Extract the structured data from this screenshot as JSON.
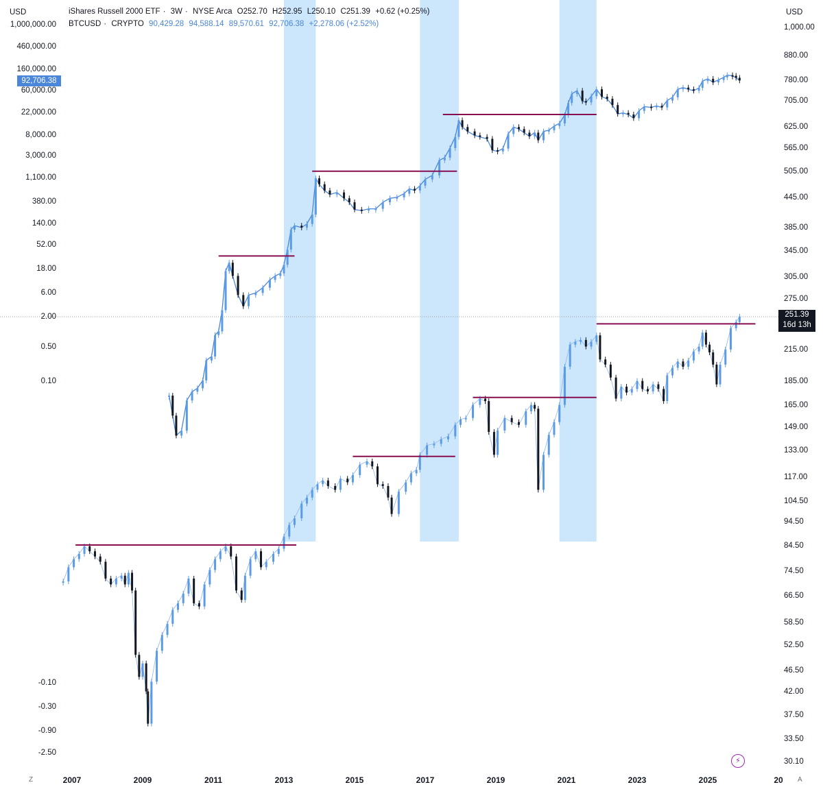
{
  "header": {
    "iwm": {
      "name": "iShares Russell 2000 ETF",
      "interval": "3W",
      "exchange": "NYSE Arca",
      "open": "O252.70",
      "high": "H252.95",
      "low": "L250.10",
      "close": "C251.39",
      "change": "+0.62 (+0.25%)"
    },
    "btc": {
      "name": "BTCUSD",
      "exchange": "CRYPTO",
      "open": "90,429.28",
      "high": "94,588.14",
      "low": "89,570.61",
      "close": "92,706.38",
      "change": "+2,278.06 (+2.52%)"
    }
  },
  "axes": {
    "left_unit": "USD",
    "right_unit": "USD"
  },
  "badges": {
    "btc_price": "92,706.38",
    "iwm_price": "251.39",
    "iwm_countdown": "16d 13h"
  },
  "footer": {
    "z": "Z",
    "a": "A"
  },
  "colors": {
    "btc_line": "#4a86d9",
    "candle_up": "#5b9be6",
    "candle_down": "#131722",
    "resistance": "#880e4f",
    "highlight": "#bbdefb"
  },
  "chart_data": {
    "type": "line",
    "x_ticks": [
      "2007",
      "2009",
      "2011",
      "2013",
      "2015",
      "2017",
      "2019",
      "2021",
      "2023",
      "2025",
      "20"
    ],
    "left_axis_labels": [
      "1,000,000.00",
      "460,000.00",
      "160,000.00",
      "60,000.00",
      "22,000.00",
      "8,000.00",
      "3,000.00",
      "1,100.00",
      "380.00",
      "140.00",
      "52.00",
      "18.00",
      "6.00",
      "2.00",
      "0.50",
      "0.10",
      "-0.10",
      "-0.30",
      "-0.90",
      "-2.50"
    ],
    "right_axis_labels": [
      "1,000.00",
      "880.00",
      "780.00",
      "705.00",
      "625.00",
      "565.00",
      "505.00",
      "445.00",
      "385.00",
      "345.00",
      "305.00",
      "275.00",
      "215.00",
      "185.00",
      "165.00",
      "149.00",
      "133.00",
      "117.00",
      "104.50",
      "94.50",
      "84.50",
      "74.50",
      "66.50",
      "58.50",
      "52.50",
      "46.50",
      "42.00",
      "37.50",
      "33.50",
      "30.10"
    ],
    "highlight_periods": [
      [
        2013.0,
        2013.9
      ],
      [
        2016.85,
        2017.95
      ],
      [
        2020.8,
        2021.85
      ]
    ],
    "series": [
      {
        "name": "BTCUSD",
        "axis": "left",
        "points": [
          [
            2009.75,
            0.05
          ],
          [
            2009.85,
            0.02
          ],
          [
            2009.95,
            0.008
          ],
          [
            2010.1,
            0.01
          ],
          [
            2010.25,
            0.04
          ],
          [
            2010.4,
            0.06
          ],
          [
            2010.55,
            0.07
          ],
          [
            2010.7,
            0.1
          ],
          [
            2010.8,
            0.25
          ],
          [
            2010.95,
            0.3
          ],
          [
            2011.05,
            0.8
          ],
          [
            2011.15,
            0.95
          ],
          [
            2011.25,
            2.5
          ],
          [
            2011.35,
            15
          ],
          [
            2011.45,
            22
          ],
          [
            2011.55,
            12
          ],
          [
            2011.7,
            5
          ],
          [
            2011.85,
            3
          ],
          [
            2012.0,
            5
          ],
          [
            2012.2,
            5.5
          ],
          [
            2012.4,
            7
          ],
          [
            2012.6,
            10
          ],
          [
            2012.75,
            12
          ],
          [
            2012.9,
            13.5
          ],
          [
            2013.0,
            20
          ],
          [
            2013.1,
            40
          ],
          [
            2013.2,
            100
          ],
          [
            2013.3,
            120
          ],
          [
            2013.5,
            110
          ],
          [
            2013.65,
            130
          ],
          [
            2013.8,
            200
          ],
          [
            2013.9,
            1050
          ],
          [
            2014.0,
            800
          ],
          [
            2014.15,
            600
          ],
          [
            2014.3,
            500
          ],
          [
            2014.5,
            550
          ],
          [
            2014.7,
            420
          ],
          [
            2014.85,
            350
          ],
          [
            2015.0,
            250
          ],
          [
            2015.2,
            240
          ],
          [
            2015.4,
            260
          ],
          [
            2015.6,
            260
          ],
          [
            2015.8,
            350
          ],
          [
            2016.0,
            420
          ],
          [
            2016.2,
            440
          ],
          [
            2016.4,
            520
          ],
          [
            2016.55,
            650
          ],
          [
            2016.7,
            600
          ],
          [
            2016.85,
            750
          ],
          [
            2017.0,
            1000
          ],
          [
            2017.2,
            1200
          ],
          [
            2017.4,
            2400
          ],
          [
            2017.55,
            2700
          ],
          [
            2017.7,
            4200
          ],
          [
            2017.85,
            7000
          ],
          [
            2017.95,
            15000
          ],
          [
            2018.05,
            11000
          ],
          [
            2018.2,
            9000
          ],
          [
            2018.4,
            7500
          ],
          [
            2018.55,
            7000
          ],
          [
            2018.75,
            6400
          ],
          [
            2018.9,
            3800
          ],
          [
            2019.05,
            3600
          ],
          [
            2019.2,
            4100
          ],
          [
            2019.35,
            8000
          ],
          [
            2019.5,
            11000
          ],
          [
            2019.65,
            10000
          ],
          [
            2019.8,
            8500
          ],
          [
            2019.95,
            7200
          ],
          [
            2020.1,
            8500
          ],
          [
            2020.2,
            6000
          ],
          [
            2020.35,
            9000
          ],
          [
            2020.5,
            9500
          ],
          [
            2020.65,
            11500
          ],
          [
            2020.8,
            13000
          ],
          [
            2020.95,
            19000
          ],
          [
            2021.05,
            33000
          ],
          [
            2021.15,
            50000
          ],
          [
            2021.3,
            58000
          ],
          [
            2021.45,
            36000
          ],
          [
            2021.55,
            34000
          ],
          [
            2021.7,
            45000
          ],
          [
            2021.85,
            62000
          ],
          [
            2022.0,
            44000
          ],
          [
            2022.15,
            40000
          ],
          [
            2022.3,
            30000
          ],
          [
            2022.45,
            20000
          ],
          [
            2022.6,
            21000
          ],
          [
            2022.75,
            19500
          ],
          [
            2022.9,
            16500
          ],
          [
            2023.05,
            23000
          ],
          [
            2023.2,
            28000
          ],
          [
            2023.4,
            27000
          ],
          [
            2023.55,
            29000
          ],
          [
            2023.7,
            27000
          ],
          [
            2023.85,
            37000
          ],
          [
            2024.0,
            43000
          ],
          [
            2024.15,
            62000
          ],
          [
            2024.3,
            67000
          ],
          [
            2024.45,
            62000
          ],
          [
            2024.6,
            58000
          ],
          [
            2024.75,
            66000
          ],
          [
            2024.85,
            90000
          ],
          [
            2025.0,
            100000
          ],
          [
            2025.15,
            85000
          ],
          [
            2025.3,
            95000
          ],
          [
            2025.45,
            107000
          ],
          [
            2025.55,
            118000
          ],
          [
            2025.7,
            115000
          ],
          [
            2025.8,
            105000
          ],
          [
            2025.9,
            92706
          ]
        ]
      },
      {
        "name": "iShares Russell 2000 ETF",
        "axis": "right",
        "points": [
          [
            2006.75,
            71
          ],
          [
            2006.9,
            76
          ],
          [
            2007.05,
            79
          ],
          [
            2007.2,
            81
          ],
          [
            2007.35,
            84
          ],
          [
            2007.5,
            82
          ],
          [
            2007.65,
            80
          ],
          [
            2007.8,
            78
          ],
          [
            2007.95,
            72
          ],
          [
            2008.1,
            70
          ],
          [
            2008.25,
            72
          ],
          [
            2008.4,
            73
          ],
          [
            2008.5,
            70
          ],
          [
            2008.6,
            74
          ],
          [
            2008.7,
            68
          ],
          [
            2008.8,
            50
          ],
          [
            2008.9,
            45
          ],
          [
            2009.0,
            48
          ],
          [
            2009.1,
            42
          ],
          [
            2009.15,
            36
          ],
          [
            2009.25,
            44
          ],
          [
            2009.4,
            51
          ],
          [
            2009.55,
            55
          ],
          [
            2009.7,
            58
          ],
          [
            2009.85,
            62
          ],
          [
            2010.0,
            64
          ],
          [
            2010.15,
            67
          ],
          [
            2010.3,
            72
          ],
          [
            2010.45,
            64
          ],
          [
            2010.6,
            63
          ],
          [
            2010.75,
            70
          ],
          [
            2010.9,
            75
          ],
          [
            2011.05,
            79
          ],
          [
            2011.2,
            82
          ],
          [
            2011.35,
            84
          ],
          [
            2011.5,
            80
          ],
          [
            2011.65,
            68
          ],
          [
            2011.8,
            65
          ],
          [
            2011.9,
            73
          ],
          [
            2012.05,
            79
          ],
          [
            2012.2,
            82
          ],
          [
            2012.35,
            76
          ],
          [
            2012.5,
            78
          ],
          [
            2012.7,
            81
          ],
          [
            2012.85,
            83
          ],
          [
            2013.0,
            88
          ],
          [
            2013.15,
            93
          ],
          [
            2013.3,
            96
          ],
          [
            2013.5,
            103
          ],
          [
            2013.65,
            106
          ],
          [
            2013.8,
            110
          ],
          [
            2013.95,
            113
          ],
          [
            2014.1,
            115
          ],
          [
            2014.25,
            112
          ],
          [
            2014.45,
            110
          ],
          [
            2014.6,
            116
          ],
          [
            2014.8,
            114
          ],
          [
            2014.95,
            118
          ],
          [
            2015.15,
            124
          ],
          [
            2015.35,
            126
          ],
          [
            2015.5,
            123
          ],
          [
            2015.65,
            113
          ],
          [
            2015.8,
            112
          ],
          [
            2015.95,
            106
          ],
          [
            2016.05,
            98
          ],
          [
            2016.25,
            109
          ],
          [
            2016.45,
            114
          ],
          [
            2016.6,
            119
          ],
          [
            2016.75,
            121
          ],
          [
            2016.85,
            130
          ],
          [
            2017.05,
            136
          ],
          [
            2017.25,
            137
          ],
          [
            2017.45,
            140
          ],
          [
            2017.65,
            142
          ],
          [
            2017.85,
            150
          ],
          [
            2018.0,
            154
          ],
          [
            2018.15,
            155
          ],
          [
            2018.35,
            165
          ],
          [
            2018.55,
            170
          ],
          [
            2018.7,
            168
          ],
          [
            2018.8,
            145
          ],
          [
            2018.95,
            130
          ],
          [
            2019.05,
            146
          ],
          [
            2019.25,
            155
          ],
          [
            2019.45,
            152
          ],
          [
            2019.65,
            150
          ],
          [
            2019.85,
            160
          ],
          [
            2020.0,
            165
          ],
          [
            2020.1,
            162
          ],
          [
            2020.2,
            110
          ],
          [
            2020.35,
            130
          ],
          [
            2020.5,
            143
          ],
          [
            2020.65,
            152
          ],
          [
            2020.8,
            165
          ],
          [
            2020.95,
            198
          ],
          [
            2021.1,
            220
          ],
          [
            2021.25,
            223
          ],
          [
            2021.4,
            225
          ],
          [
            2021.55,
            218
          ],
          [
            2021.7,
            223
          ],
          [
            2021.85,
            230
          ],
          [
            2021.95,
            205
          ],
          [
            2022.1,
            200
          ],
          [
            2022.25,
            188
          ],
          [
            2022.4,
            170
          ],
          [
            2022.55,
            180
          ],
          [
            2022.7,
            175
          ],
          [
            2022.85,
            178
          ],
          [
            2023.0,
            185
          ],
          [
            2023.15,
            178
          ],
          [
            2023.3,
            176
          ],
          [
            2023.45,
            182
          ],
          [
            2023.6,
            178
          ],
          [
            2023.75,
            168
          ],
          [
            2023.85,
            190
          ],
          [
            2024.0,
            197
          ],
          [
            2024.15,
            203
          ],
          [
            2024.3,
            198
          ],
          [
            2024.45,
            204
          ],
          [
            2024.6,
            213
          ],
          [
            2024.75,
            218
          ],
          [
            2024.85,
            233
          ],
          [
            2024.95,
            220
          ],
          [
            2025.05,
            212
          ],
          [
            2025.15,
            200
          ],
          [
            2025.25,
            182
          ],
          [
            2025.35,
            200
          ],
          [
            2025.5,
            215
          ],
          [
            2025.65,
            238
          ],
          [
            2025.8,
            245
          ],
          [
            2025.9,
            251.39
          ]
        ]
      }
    ],
    "resistance_lines": [
      {
        "axis": "left",
        "value": 30,
        "from": 2011.15,
        "to": 2013.3
      },
      {
        "axis": "left",
        "value": 1450,
        "from": 2013.8,
        "to": 2017.9
      },
      {
        "axis": "left",
        "value": 19500,
        "from": 2017.5,
        "to": 2021.85
      },
      {
        "axis": "right",
        "value": 84.5,
        "from": 2007.1,
        "to": 2013.35
      },
      {
        "axis": "right",
        "value": 129,
        "from": 2014.95,
        "to": 2017.85
      },
      {
        "axis": "right",
        "value": 171,
        "from": 2018.35,
        "to": 2021.85
      },
      {
        "axis": "right",
        "value": 243,
        "from": 2021.85,
        "to": 2026.35
      }
    ]
  }
}
